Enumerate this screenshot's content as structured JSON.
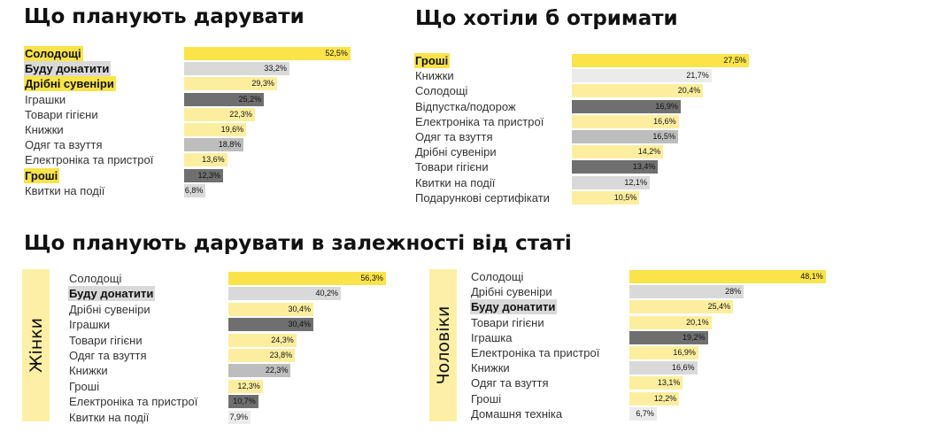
{
  "chart_data": [
    {
      "type": "bar",
      "title": "Що планують дарувати",
      "categories": [
        "Солодощі",
        "Буду донатити",
        "Дрібні сувеніри",
        "Іграшки",
        "Товари гігієни",
        "Книжки",
        "Одяг та взуття",
        "Електроніка та пристрої",
        "Гроші",
        "Квитки на події"
      ],
      "values": [
        52.5,
        33.2,
        29.3,
        25.2,
        22.3,
        19.6,
        18.8,
        13.6,
        12.3,
        6.8
      ],
      "value_labels": [
        "52,5%",
        "33,2%",
        "29,3%",
        "25,2%",
        "22,3%",
        "19,6%",
        "18,8%",
        "13,6%",
        "12,3%",
        "6,8%"
      ],
      "highlight": [
        "yellow",
        "gray",
        "yellow",
        "",
        "",
        "",
        "",
        "",
        "yellow",
        ""
      ],
      "bar_colors": [
        "#fbe34a",
        "#d9d9d9",
        "#fdee9f",
        "#6f6f6f",
        "#fdee9f",
        "#fdee9f",
        "#bdbdbd",
        "#fdee9f",
        "#6f6f6f",
        "#d9d9d9"
      ]
    },
    {
      "type": "bar",
      "title": "Що хотіли б отримати",
      "categories": [
        "Гроші",
        "Книжки",
        "Солодощі",
        "Відпустка/подорож",
        "Електроніка та пристрої",
        "Одяг та взуття",
        "Дрібні сувеніри",
        "Товари гігієни",
        "Квитки на події",
        "Подарункові сертифікати"
      ],
      "values": [
        27.5,
        21.7,
        20.4,
        16.9,
        16.6,
        16.5,
        14.2,
        13.4,
        12.1,
        10.5
      ],
      "value_labels": [
        "27,5%",
        "21,7%",
        "20,4%",
        "16,9%",
        "16,6%",
        "16,5%",
        "14,2%",
        "13,4%",
        "12,1%",
        "10,5%"
      ],
      "highlight": [
        "yellow",
        "",
        "",
        "",
        "",
        "",
        "",
        "",
        "",
        ""
      ],
      "bar_colors": [
        "#fbe34a",
        "#ebebeb",
        "#fdee9f",
        "#6f6f6f",
        "#fdee9f",
        "#bdbdbd",
        "#fdee9f",
        "#6f6f6f",
        "#d9d9d9",
        "#fdee9f"
      ]
    },
    {
      "type": "bar",
      "title": "Що планують дарувати в залежності від статі",
      "group": "Жінки",
      "categories": [
        "Солодощі",
        "Буду донатити",
        "Дрібні сувеніри",
        "Іграшки",
        "Товари гігієни",
        "Одяг та взуття",
        "Книжки",
        "Гроші",
        "Електроніка та пристрої",
        "Квитки на події"
      ],
      "values": [
        56.3,
        40.2,
        30.4,
        30.4,
        24.3,
        23.8,
        22.3,
        12.3,
        10.7,
        7.9
      ],
      "value_labels": [
        "56,3%",
        "40,2%",
        "30,4%",
        "30,4%",
        "24,3%",
        "23,8%",
        "22,3%",
        "12,3%",
        "10,7%",
        "7,9%"
      ],
      "highlight": [
        "",
        "gray",
        "",
        "",
        "",
        "",
        "",
        "",
        "",
        ""
      ],
      "bar_colors": [
        "#fbe34a",
        "#d9d9d9",
        "#fdee9f",
        "#6f6f6f",
        "#fdee9f",
        "#fdee9f",
        "#bdbdbd",
        "#fdee9f",
        "#6f6f6f",
        "#ebebeb"
      ]
    },
    {
      "type": "bar",
      "group": "Чоловіки",
      "categories": [
        "Солодощі",
        "Дрібні сувеніри",
        "Буду донатити",
        "Товари гігієни",
        "Іграшка",
        "Електроніка та пристрої",
        "Книжки",
        "Одяг та взуття",
        "Гроші",
        "Домашня техніка"
      ],
      "values": [
        48.1,
        28,
        25.4,
        20.1,
        19.2,
        16.9,
        16.6,
        13.1,
        12.2,
        6.7
      ],
      "value_labels": [
        "48,1%",
        "28%",
        "25,4%",
        "20,1%",
        "19,2%",
        "16,9%",
        "16,6%",
        "13,1%",
        "12,2%",
        "6,7%"
      ],
      "highlight": [
        "",
        "",
        "gray",
        "",
        "",
        "",
        "",
        "",
        "",
        ""
      ],
      "bar_colors": [
        "#fbe34a",
        "#d9d9d9",
        "#fdee9f",
        "#fdee9f",
        "#6f6f6f",
        "#fdee9f",
        "#d9d9d9",
        "#fdee9f",
        "#fdee9f",
        "#ebebeb"
      ]
    }
  ]
}
